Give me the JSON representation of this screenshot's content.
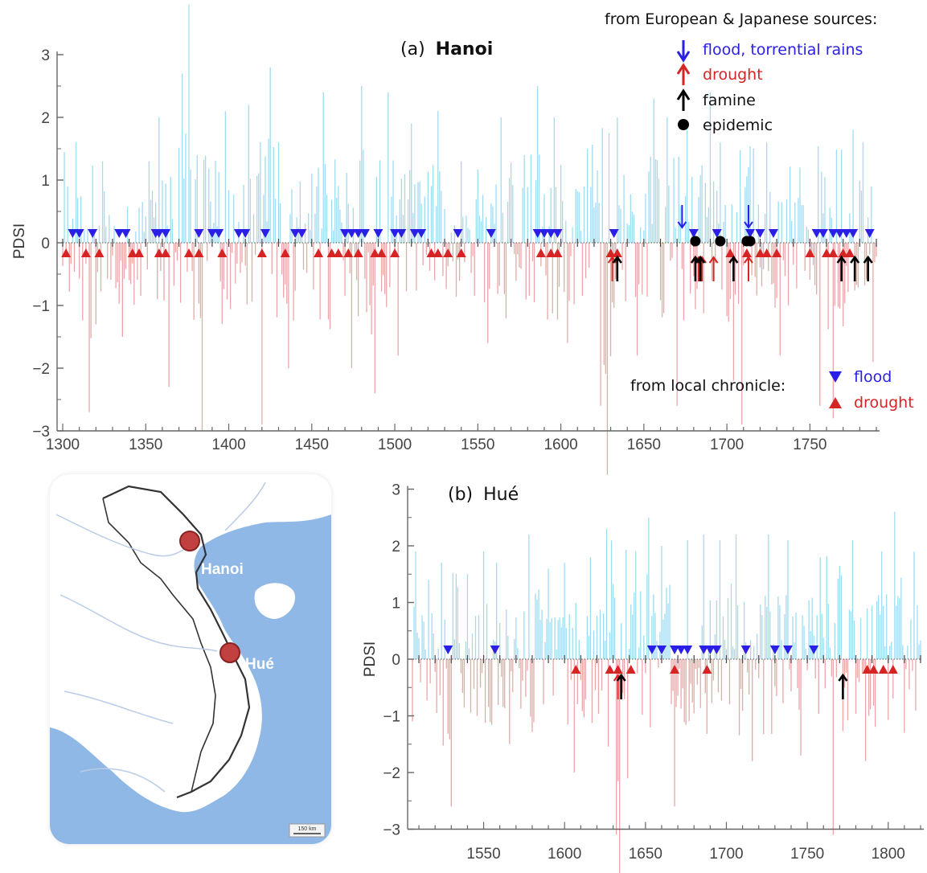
{
  "colors": {
    "positive_bar": "#9fdcf2",
    "negative_bar": "#eaa7a7",
    "flood": "#2a1fe6",
    "drought": "#d62424",
    "famine": "#000000",
    "epidemic": "#000000",
    "sea": "#8fb8e6",
    "land": "#ffffff"
  },
  "legend_european": {
    "heading": "from European & Japanese sources:",
    "items": [
      {
        "symbol": "down-arrow",
        "label": "flood, torrential rains"
      },
      {
        "symbol": "up-arrow",
        "label": "drought"
      },
      {
        "symbol": "up-arrow",
        "label": "famine"
      },
      {
        "symbol": "dot",
        "label": "epidemic"
      }
    ]
  },
  "legend_local": {
    "heading": "from local chronicle:",
    "items": [
      {
        "symbol": "down-triangle",
        "label": "flood"
      },
      {
        "symbol": "up-triangle",
        "label": "drought"
      }
    ]
  },
  "map": {
    "labels": [
      "Hanoi",
      "Hué"
    ],
    "scale_label": "150 km"
  },
  "chart_data": [
    {
      "type": "bar",
      "title_prefix": "(a)",
      "title": "Hanoi",
      "ylabel": "PDSI",
      "xlim": [
        1300,
        1790
      ],
      "ylim": [
        -3,
        3
      ],
      "x_ticks": [
        1300,
        1350,
        1400,
        1450,
        1500,
        1550,
        1600,
        1650,
        1700,
        1750
      ],
      "y_ticks": [
        "3",
        "2",
        "1",
        "0",
        "−1",
        "−2",
        "−3"
      ],
      "y_tick_values": [
        3,
        2,
        1,
        0,
        -1,
        -2,
        -3
      ],
      "series_peaks": [
        {
          "x": 1301,
          "y": 1.45
        },
        {
          "x": 1308,
          "y": 1.6
        },
        {
          "x": 1316,
          "y": -2.7
        },
        {
          "x": 1324,
          "y": 1.3
        },
        {
          "x": 1336,
          "y": -1.5
        },
        {
          "x": 1352,
          "y": 1.3
        },
        {
          "x": 1358,
          "y": 2.0
        },
        {
          "x": 1364,
          "y": -2.3
        },
        {
          "x": 1372,
          "y": 2.7
        },
        {
          "x": 1376,
          "y": 3.8
        },
        {
          "x": 1384,
          "y": -3.0
        },
        {
          "x": 1398,
          "y": 2.1
        },
        {
          "x": 1412,
          "y": 2.2
        },
        {
          "x": 1420,
          "y": -2.9
        },
        {
          "x": 1425,
          "y": 2.8
        },
        {
          "x": 1436,
          "y": -2.0
        },
        {
          "x": 1450,
          "y": 1.1
        },
        {
          "x": 1457,
          "y": 2.4
        },
        {
          "x": 1474,
          "y": -2.0
        },
        {
          "x": 1480,
          "y": 2.5
        },
        {
          "x": 1488,
          "y": -2.4
        },
        {
          "x": 1496,
          "y": 2.4
        },
        {
          "x": 1502,
          "y": -1.8
        },
        {
          "x": 1510,
          "y": 1.9
        },
        {
          "x": 1526,
          "y": 2.1
        },
        {
          "x": 1540,
          "y": 1.3
        },
        {
          "x": 1556,
          "y": -1.6
        },
        {
          "x": 1564,
          "y": 2.0
        },
        {
          "x": 1578,
          "y": 1.4
        },
        {
          "x": 1586,
          "y": 2.5
        },
        {
          "x": 1596,
          "y": 2.0
        },
        {
          "x": 1604,
          "y": -1.6
        },
        {
          "x": 1616,
          "y": 1.5
        },
        {
          "x": 1624,
          "y": -2.6
        },
        {
          "x": 1628,
          "y": -3.7
        },
        {
          "x": 1634,
          "y": 2.0
        },
        {
          "x": 1646,
          "y": -1.8
        },
        {
          "x": 1656,
          "y": 2.3
        },
        {
          "x": 1664,
          "y": 2.0
        },
        {
          "x": 1670,
          "y": -2.6
        },
        {
          "x": 1676,
          "y": 1.8
        },
        {
          "x": 1690,
          "y": 2.4
        },
        {
          "x": 1696,
          "y": 1.6
        },
        {
          "x": 1704,
          "y": -2.2
        },
        {
          "x": 1709,
          "y": -2.9
        },
        {
          "x": 1716,
          "y": 1.5
        },
        {
          "x": 1724,
          "y": 1.6
        },
        {
          "x": 1732,
          "y": -1.8
        },
        {
          "x": 1744,
          "y": 1.2
        },
        {
          "x": 1756,
          "y": -2.6
        },
        {
          "x": 1764,
          "y": -2.8
        },
        {
          "x": 1776,
          "y": 1.8
        },
        {
          "x": 1782,
          "y": 1.6
        },
        {
          "x": 1788,
          "y": -1.9
        }
      ],
      "local_floods": [
        1306,
        1310,
        1318,
        1334,
        1338,
        1356,
        1358,
        1362,
        1382,
        1390,
        1394,
        1406,
        1410,
        1422,
        1440,
        1444,
        1470,
        1474,
        1478,
        1482,
        1490,
        1500,
        1504,
        1512,
        1516,
        1538,
        1558,
        1586,
        1590,
        1594,
        1598,
        1632,
        1680,
        1694,
        1714,
        1720,
        1728,
        1754,
        1758,
        1764,
        1768,
        1772,
        1776,
        1786
      ],
      "local_droughts": [
        1302,
        1314,
        1322,
        1342,
        1346,
        1358,
        1362,
        1376,
        1382,
        1396,
        1420,
        1434,
        1454,
        1462,
        1466,
        1472,
        1478,
        1488,
        1492,
        1500,
        1522,
        1526,
        1532,
        1540,
        1588,
        1594,
        1598,
        1630,
        1634,
        1702,
        1712,
        1720,
        1724,
        1730,
        1750,
        1760,
        1764,
        1770,
        1774
      ],
      "euro_floods": [
        1673,
        1713
      ],
      "euro_droughts": [
        1631,
        1683,
        1685,
        1692,
        1713
      ],
      "famines": [
        1634,
        1681,
        1684,
        1704,
        1769,
        1777,
        1785
      ],
      "epidemics": [
        1681,
        1696,
        1712,
        1714
      ]
    },
    {
      "type": "bar",
      "title_prefix": "(b)",
      "title": "Hué",
      "ylabel": "PDSI",
      "xlim": [
        1506,
        1820
      ],
      "ylim": [
        -3,
        3
      ],
      "x_ticks": [
        1550,
        1600,
        1650,
        1700,
        1750,
        1800
      ],
      "y_ticks": [
        "3",
        "2",
        "1",
        "0",
        "−1",
        "−2",
        "−3"
      ],
      "y_tick_values": [
        3,
        2,
        1,
        0,
        -1,
        -2,
        -3
      ],
      "series_peaks": [
        {
          "x": 1508,
          "y": 1.9
        },
        {
          "x": 1516,
          "y": 1.4
        },
        {
          "x": 1524,
          "y": 1.7
        },
        {
          "x": 1530,
          "y": -2.6
        },
        {
          "x": 1540,
          "y": 1.5
        },
        {
          "x": 1550,
          "y": 1.9
        },
        {
          "x": 1558,
          "y": 1.7
        },
        {
          "x": 1566,
          "y": -1.5
        },
        {
          "x": 1578,
          "y": 2.2
        },
        {
          "x": 1590,
          "y": 1.6
        },
        {
          "x": 1600,
          "y": 1.7
        },
        {
          "x": 1606,
          "y": -2.0
        },
        {
          "x": 1616,
          "y": 1.8
        },
        {
          "x": 1626,
          "y": 2.3
        },
        {
          "x": 1632,
          "y": -3.1
        },
        {
          "x": 1634,
          "y": -3.8
        },
        {
          "x": 1644,
          "y": 1.9
        },
        {
          "x": 1652,
          "y": 2.5
        },
        {
          "x": 1660,
          "y": 2.0
        },
        {
          "x": 1668,
          "y": -2.6
        },
        {
          "x": 1676,
          "y": 2.1
        },
        {
          "x": 1686,
          "y": 2.2
        },
        {
          "x": 1696,
          "y": 2.1
        },
        {
          "x": 1706,
          "y": 2.2
        },
        {
          "x": 1716,
          "y": -1.8
        },
        {
          "x": 1726,
          "y": 2.2
        },
        {
          "x": 1738,
          "y": 2.1
        },
        {
          "x": 1746,
          "y": -1.7
        },
        {
          "x": 1758,
          "y": 1.8
        },
        {
          "x": 1766,
          "y": -3.1
        },
        {
          "x": 1778,
          "y": 2.1
        },
        {
          "x": 1786,
          "y": -1.8
        },
        {
          "x": 1796,
          "y": 1.9
        },
        {
          "x": 1804,
          "y": 2.6
        },
        {
          "x": 1810,
          "y": -1.3
        },
        {
          "x": 1816,
          "y": 1.9
        }
      ],
      "local_floods": [
        1528,
        1557,
        1654,
        1660,
        1668,
        1672,
        1676,
        1686,
        1690,
        1694,
        1712,
        1730,
        1738,
        1754
      ],
      "local_droughts": [
        1607,
        1628,
        1633,
        1641,
        1668,
        1688,
        1787,
        1791,
        1797,
        1803
      ],
      "euro_floods": [],
      "euro_droughts": [
        1633
      ],
      "famines": [
        1635,
        1772
      ],
      "epidemics": []
    }
  ]
}
